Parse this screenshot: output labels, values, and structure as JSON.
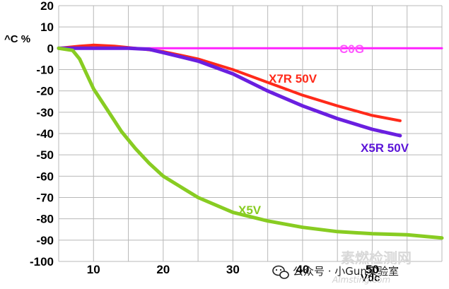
{
  "chart_data": {
    "type": "line",
    "ylabel": "^C %",
    "xlabel": "Vdc",
    "xlim": [
      5,
      60
    ],
    "ylim": [
      -100,
      20
    ],
    "x_ticks": [
      "10",
      "20",
      "30",
      "40",
      "50"
    ],
    "y_ticks": [
      "20",
      "10",
      "0",
      "-10",
      "-20",
      "-30",
      "-40",
      "-50",
      "-60",
      "-70",
      "-80",
      "-90",
      "-100"
    ],
    "grid": true,
    "series": [
      {
        "name": "C0G",
        "color": "#ff22ff",
        "points": [
          [
            5,
            0
          ],
          [
            60,
            0
          ]
        ]
      },
      {
        "name": "X7R  50V",
        "color": "#ff2a1a",
        "points": [
          [
            5,
            0
          ],
          [
            8,
            1
          ],
          [
            10,
            1.5
          ],
          [
            13,
            1
          ],
          [
            16,
            0
          ],
          [
            20,
            -1.5
          ],
          [
            25,
            -5
          ],
          [
            30,
            -10
          ],
          [
            35,
            -16
          ],
          [
            40,
            -22
          ],
          [
            45,
            -27
          ],
          [
            50,
            -31.5
          ],
          [
            54,
            -34
          ]
        ]
      },
      {
        "name": "X5R 50V",
        "color": "#6a1fe0",
        "points": [
          [
            5,
            0
          ],
          [
            10,
            0
          ],
          [
            15,
            0
          ],
          [
            18,
            -0.5
          ],
          [
            20,
            -2
          ],
          [
            25,
            -6
          ],
          [
            30,
            -12
          ],
          [
            35,
            -20
          ],
          [
            40,
            -27
          ],
          [
            45,
            -33
          ],
          [
            50,
            -38
          ],
          [
            54,
            -41
          ]
        ]
      },
      {
        "name": "X5V",
        "color": "#88cc22",
        "points": [
          [
            5,
            0
          ],
          [
            7,
            -1
          ],
          [
            8,
            -5
          ],
          [
            9,
            -12
          ],
          [
            10,
            -19
          ],
          [
            12,
            -29
          ],
          [
            14,
            -39
          ],
          [
            16,
            -47
          ],
          [
            18,
            -54
          ],
          [
            20,
            -60
          ],
          [
            25,
            -70
          ],
          [
            30,
            -77
          ],
          [
            35,
            -81
          ],
          [
            40,
            -84
          ],
          [
            45,
            -86
          ],
          [
            50,
            -87
          ],
          [
            55,
            -87.5
          ],
          [
            60,
            -89
          ]
        ]
      }
    ]
  },
  "watermark": {
    "primary": "公众号 · 小Gun实验室",
    "faint": "素燃检测网",
    "faint_sub": "Almsting.com"
  }
}
